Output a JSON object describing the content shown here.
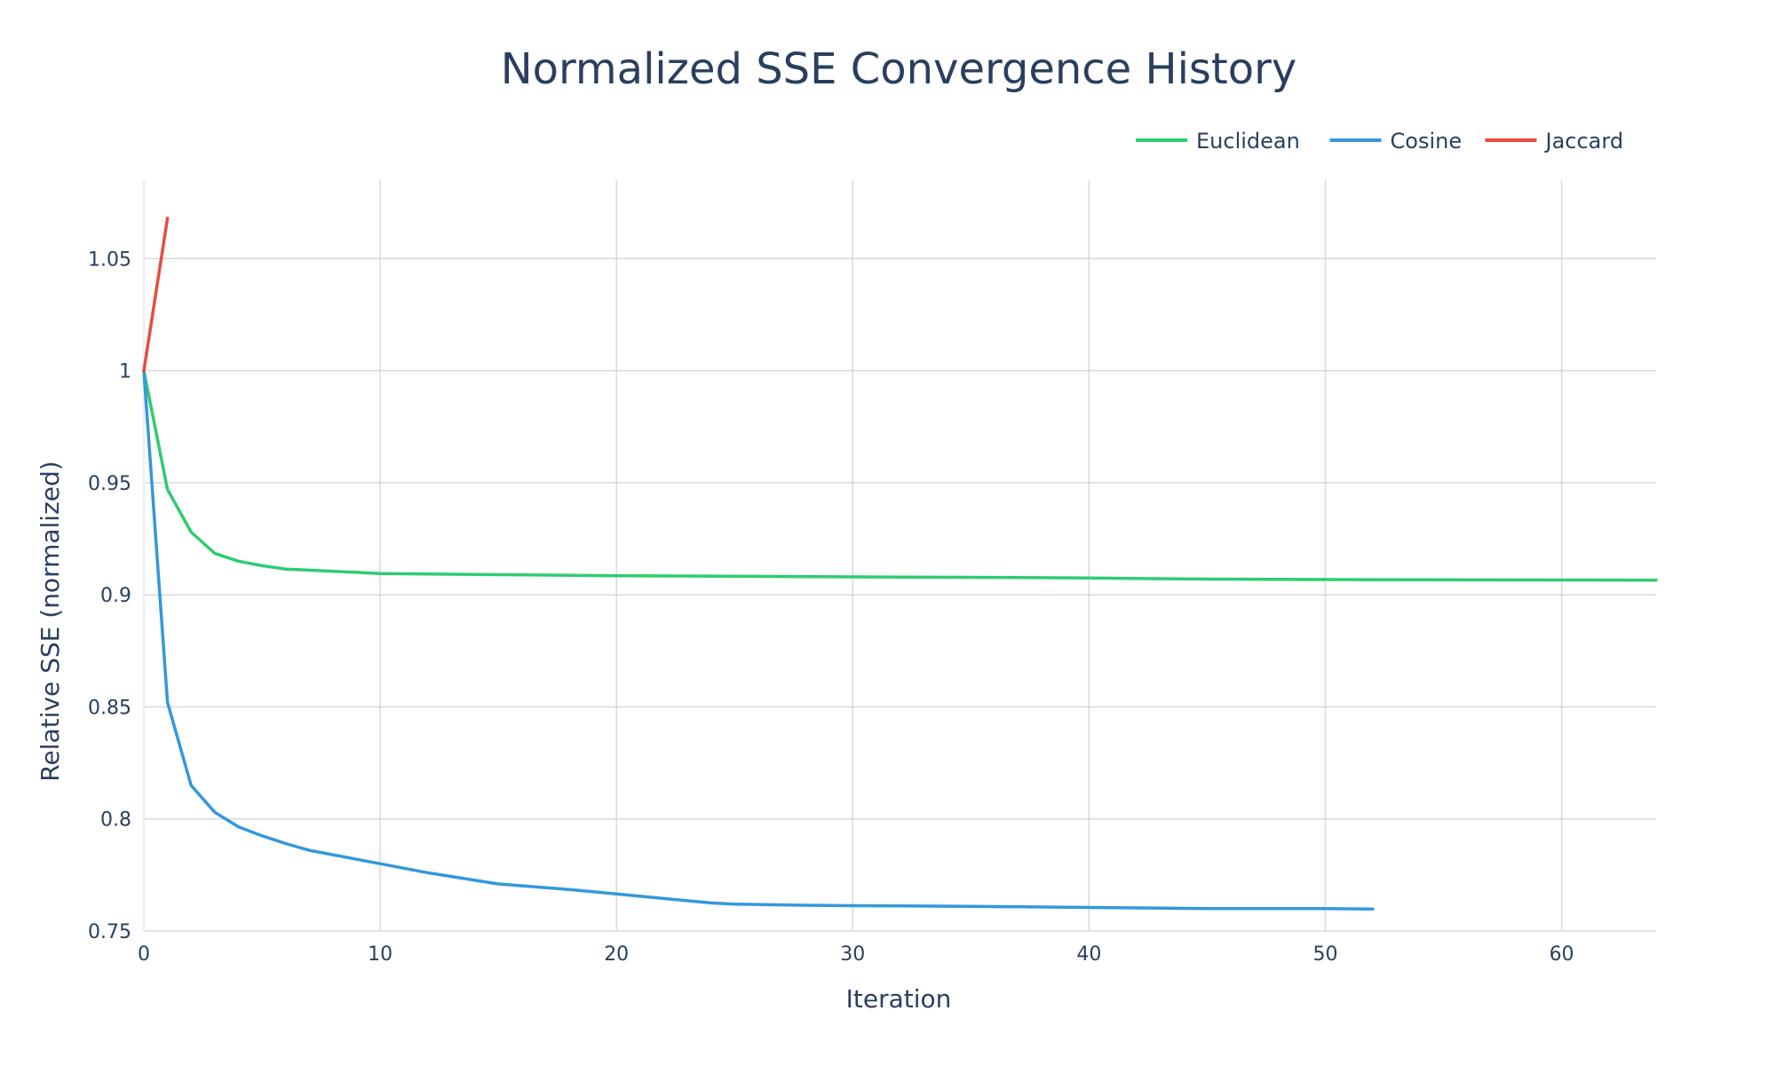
{
  "chart_data": {
    "type": "line",
    "title": "Normalized SSE Convergence History",
    "xlabel": "Iteration",
    "ylabel": "Relative SSE (normalized)",
    "xlim": [
      0,
      64
    ],
    "ylim": [
      0.75,
      1.085
    ],
    "xticks": [
      0,
      10,
      20,
      30,
      40,
      50,
      60
    ],
    "yticks": [
      0.75,
      0.8,
      0.85,
      0.9,
      0.95,
      1,
      1.05
    ],
    "ytick_labels": [
      "0.75",
      "0.8",
      "0.85",
      "0.9",
      "0.95",
      "1",
      "1.05"
    ],
    "grid": true,
    "legend_position": "top-right",
    "series": [
      {
        "name": "Euclidean",
        "color": "#2ecc71",
        "x": [
          0,
          1,
          2,
          3,
          4,
          5,
          6,
          7,
          8,
          9,
          10,
          12,
          15,
          18,
          20,
          25,
          30,
          35,
          40,
          45,
          50,
          55,
          60,
          64
        ],
        "y": [
          1.0,
          0.947,
          0.928,
          0.9185,
          0.915,
          0.913,
          0.9115,
          0.911,
          0.9105,
          0.91,
          0.9095,
          0.9093,
          0.909,
          0.9087,
          0.9085,
          0.9083,
          0.908,
          0.9078,
          0.9075,
          0.907,
          0.9068,
          0.9067,
          0.9066,
          0.9065
        ]
      },
      {
        "name": "Cosine",
        "color": "#3498db",
        "x": [
          0,
          1,
          2,
          3,
          4,
          5,
          6,
          7,
          8,
          9,
          10,
          12,
          15,
          18,
          20,
          22,
          24,
          25,
          28,
          30,
          35,
          40,
          45,
          50,
          52
        ],
        "y": [
          1.0,
          0.852,
          0.815,
          0.803,
          0.7965,
          0.7925,
          0.789,
          0.786,
          0.784,
          0.782,
          0.78,
          0.776,
          0.771,
          0.7685,
          0.7665,
          0.7645,
          0.7625,
          0.762,
          0.7615,
          0.7613,
          0.761,
          0.7605,
          0.76,
          0.76,
          0.7598
        ]
      },
      {
        "name": "Jaccard",
        "color": "#e74c3c",
        "x": [
          0,
          1
        ],
        "y": [
          1.0,
          1.068
        ]
      }
    ]
  }
}
